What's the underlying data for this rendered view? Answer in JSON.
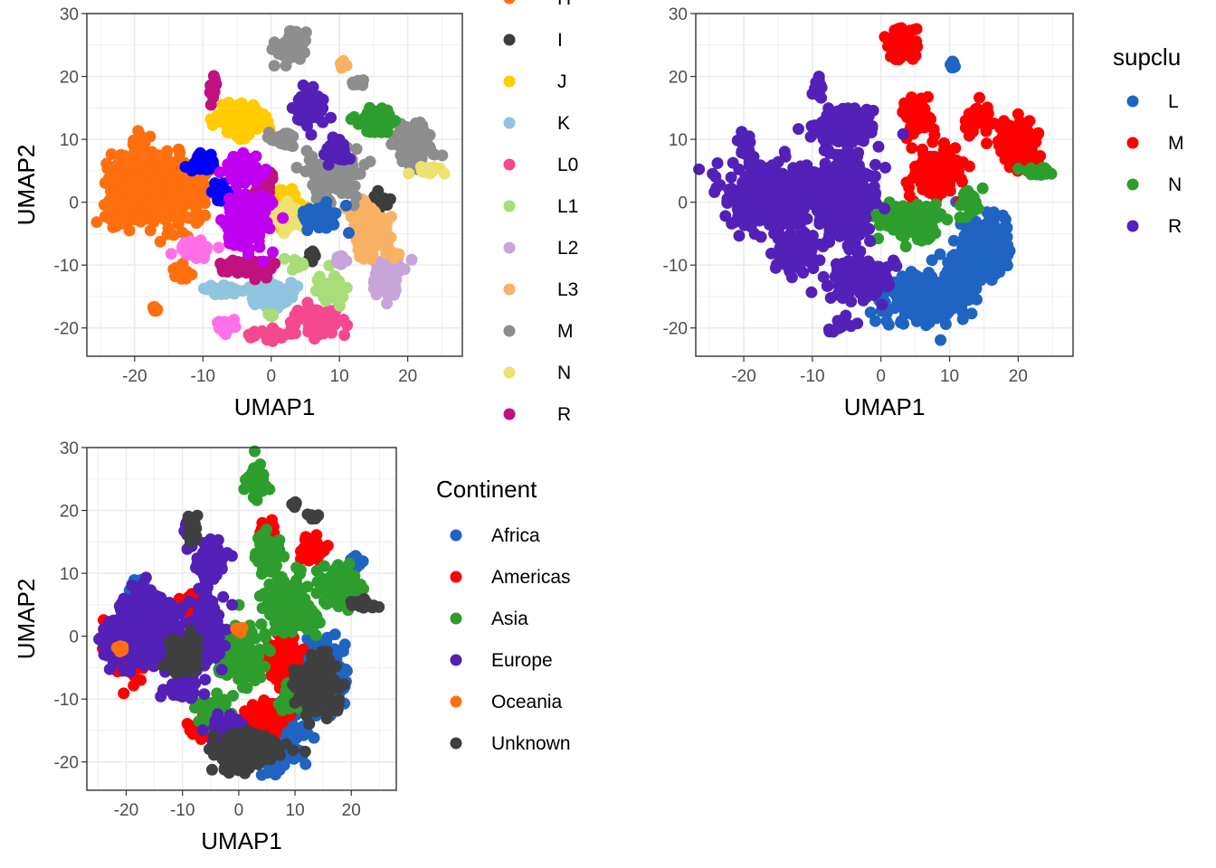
{
  "chart_data": [
    {
      "type": "scatter",
      "xlabel": "UMAP1",
      "ylabel": "UMAP2",
      "xlim": [
        -27,
        28
      ],
      "ylim": [
        -24.5,
        30
      ],
      "xticks": [
        -20,
        -10,
        0,
        10,
        20
      ],
      "yticks": [
        -20,
        -10,
        0,
        10,
        20,
        30
      ],
      "x_tick_labels": [
        "-20",
        "-10",
        "0",
        "10",
        "20"
      ],
      "y_tick_labels": [
        "-20",
        "-10",
        "0",
        "10",
        "20",
        "30"
      ],
      "grid": true,
      "legend_title": "",
      "legend_position": "right",
      "series": [
        {
          "name": "H",
          "color": "#ff6f0e",
          "clusters": [
            {
              "x": -16,
              "y": 2,
              "sx": 4.5,
              "sy": 4
            },
            {
              "x": -21,
              "y": 2,
              "sx": 2,
              "sy": 4
            },
            {
              "x": -19.5,
              "y": 9,
              "sx": 0.8,
              "sy": 1.2
            },
            {
              "x": -13,
              "y": -11,
              "sx": 1,
              "sy": 1
            },
            {
              "x": -17,
              "y": -17,
              "sx": 0.3,
              "sy": 0.3
            }
          ]
        },
        {
          "name": "I",
          "color": "#3d3d3d",
          "clusters": [
            {
              "x": 16,
              "y": 0,
              "sx": 1,
              "sy": 1.2
            },
            {
              "x": 6,
              "y": -8,
              "sx": 0.6,
              "sy": 0.8
            }
          ]
        },
        {
          "name": "J",
          "color": "#ffcc00",
          "clusters": [
            {
              "x": -4.5,
              "y": 13,
              "sx": 2.5,
              "sy": 1.8
            },
            {
              "x": 2,
              "y": -1,
              "sx": 1.8,
              "sy": 2
            }
          ]
        },
        {
          "name": "K",
          "color": "#91c4de",
          "clusters": [
            {
              "x": 0,
              "y": -14.5,
              "sx": 2.5,
              "sy": 1.5
            },
            {
              "x": -7,
              "y": -14,
              "sx": 1.5,
              "sy": 0.8
            }
          ]
        },
        {
          "name": "L0",
          "color": "#f4498e",
          "clusters": [
            {
              "x": 7,
              "y": -19,
              "sx": 2.5,
              "sy": 1.5
            },
            {
              "x": 0,
              "y": -21,
              "sx": 2,
              "sy": 0.6
            }
          ]
        },
        {
          "name": "L1",
          "color": "#a8dd78",
          "clusters": [
            {
              "x": 9,
              "y": -14,
              "sx": 1.5,
              "sy": 1.5
            },
            {
              "x": 4,
              "y": -10,
              "sx": 1,
              "sy": 0.7
            },
            {
              "x": 0,
              "y": -18,
              "sx": 0.3,
              "sy": 0.3
            }
          ]
        },
        {
          "name": "L2",
          "color": "#c7a4d9",
          "clusters": [
            {
              "x": 17,
              "y": -12,
              "sx": 1.5,
              "sy": 2.5
            },
            {
              "x": 10,
              "y": -9,
              "sx": 0.7,
              "sy": 0.7
            }
          ]
        },
        {
          "name": "L3",
          "color": "#f9b163",
          "clusters": [
            {
              "x": 15,
              "y": -5,
              "sx": 2,
              "sy": 2.5
            },
            {
              "x": 13,
              "y": -1,
              "sx": 1.2,
              "sy": 1.2
            },
            {
              "x": 10.5,
              "y": 22,
              "sx": 0.3,
              "sy": 0.3
            }
          ]
        },
        {
          "name": "M",
          "color": "#8e8e8e",
          "clusters": [
            {
              "x": 9,
              "y": 4,
              "sx": 2.5,
              "sy": 3
            },
            {
              "x": 21,
              "y": 9,
              "sx": 2,
              "sy": 2.5
            },
            {
              "x": 3,
              "y": 25,
              "sx": 1.5,
              "sy": 2
            },
            {
              "x": 1.5,
              "y": 10,
              "sx": 1.2,
              "sy": 1.2
            },
            {
              "x": 13,
              "y": 19,
              "sx": 0.8,
              "sy": 0.4
            }
          ]
        },
        {
          "name": "N",
          "color": "#ede16f",
          "clusters": [
            {
              "x": 23,
              "y": 5,
              "sx": 1.5,
              "sy": 0.6
            },
            {
              "x": 2,
              "y": -2,
              "sx": 1.5,
              "sy": 1.5
            }
          ]
        },
        {
          "name": "R",
          "color": "#c1117f",
          "clusters": [
            {
              "x": -3,
              "y": -10.5,
              "sx": 3,
              "sy": 1
            },
            {
              "x": -1,
              "y": 3,
              "sx": 1,
              "sy": 1.5
            },
            {
              "x": -8.5,
              "y": 18,
              "sx": 0.4,
              "sy": 1.5
            }
          ]
        },
        {
          "name": "",
          "color": "#5320b8",
          "clusters": [
            {
              "x": 5.5,
              "y": 15,
              "sx": 1.5,
              "sy": 2
            },
            {
              "x": 9.5,
              "y": 8,
              "sx": 1.2,
              "sy": 1.2
            }
          ]
        },
        {
          "name": "",
          "color": "#2d9e2d",
          "clusters": [
            {
              "x": 15,
              "y": 13,
              "sx": 2,
              "sy": 1.5
            }
          ]
        },
        {
          "name": "",
          "color": "#1f64c2",
          "clusters": [
            {
              "x": 7.5,
              "y": -2.5,
              "sx": 2,
              "sy": 1.5
            }
          ]
        },
        {
          "name": "",
          "color": "#0000ff",
          "clusters": [
            {
              "x": -10,
              "y": 6,
              "sx": 1.5,
              "sy": 1.2
            },
            {
              "x": -7,
              "y": 1.5,
              "sx": 1,
              "sy": 1
            }
          ]
        },
        {
          "name": "",
          "color": "#c000f0",
          "clusters": [
            {
              "x": -3.5,
              "y": -3,
              "sx": 2.5,
              "sy": 3
            },
            {
              "x": -4,
              "y": 5.5,
              "sx": 2,
              "sy": 1.5
            }
          ]
        },
        {
          "name": "",
          "color": "#ff70e8",
          "clusters": [
            {
              "x": -11,
              "y": -7.5,
              "sx": 2,
              "sy": 1
            },
            {
              "x": -6.5,
              "y": -19.5,
              "sx": 1,
              "sy": 0.8
            }
          ]
        }
      ]
    },
    {
      "type": "scatter",
      "xlabel": "UMAP1",
      "ylabel": "UMAP2",
      "xlim": [
        -27,
        28
      ],
      "ylim": [
        -24.5,
        30
      ],
      "xticks": [
        -20,
        -10,
        0,
        10,
        20
      ],
      "yticks": [
        -20,
        -10,
        0,
        10,
        20,
        30
      ],
      "x_tick_labels": [
        "-20",
        "-10",
        "0",
        "10",
        "20"
      ],
      "y_tick_labels": [
        "-20",
        "-10",
        "0",
        "10",
        "20",
        "30"
      ],
      "grid": true,
      "legend_title": "supclu",
      "legend_position": "right",
      "series": [
        {
          "name": "L",
          "color": "#1f64c2",
          "clusters": [
            {
              "x": 15,
              "y": -7,
              "sx": 2.5,
              "sy": 3.5
            },
            {
              "x": 6,
              "y": -15,
              "sx": 4,
              "sy": 3
            },
            {
              "x": 12,
              "y": -12,
              "sx": 2,
              "sy": 2
            },
            {
              "x": 10.5,
              "y": 22,
              "sx": 0.3,
              "sy": 0.3
            }
          ]
        },
        {
          "name": "M",
          "color": "#ff0000",
          "clusters": [
            {
              "x": 8,
              "y": 5,
              "sx": 2.5,
              "sy": 3
            },
            {
              "x": 20,
              "y": 9,
              "sx": 2,
              "sy": 2.5
            },
            {
              "x": 3,
              "y": 25,
              "sx": 1.5,
              "sy": 2
            },
            {
              "x": 5,
              "y": 14,
              "sx": 1.5,
              "sy": 2
            },
            {
              "x": 14,
              "y": 13,
              "sx": 1.5,
              "sy": 1.5
            }
          ]
        },
        {
          "name": "N",
          "color": "#2d9e2d",
          "clusters": [
            {
              "x": 4,
              "y": -3,
              "sx": 3,
              "sy": 2
            },
            {
              "x": 23,
              "y": 5,
              "sx": 1.5,
              "sy": 0.6
            },
            {
              "x": 13,
              "y": 0,
              "sx": 1.2,
              "sy": 1.2
            }
          ]
        },
        {
          "name": "R",
          "color": "#5320b8",
          "clusters": [
            {
              "x": -16,
              "y": 1,
              "sx": 4.5,
              "sy": 4
            },
            {
              "x": -5,
              "y": 1,
              "sx": 3,
              "sy": 5
            },
            {
              "x": -3,
              "y": -12,
              "sx": 3,
              "sy": 2.5
            },
            {
              "x": -5,
              "y": 12,
              "sx": 3,
              "sy": 2
            },
            {
              "x": -12,
              "y": -8,
              "sx": 2,
              "sy": 2
            },
            {
              "x": -6,
              "y": -19.5,
              "sx": 1,
              "sy": 0.8
            },
            {
              "x": -9,
              "y": 18,
              "sx": 0.5,
              "sy": 1.5
            },
            {
              "x": -20,
              "y": 9,
              "sx": 0.8,
              "sy": 1.2
            }
          ]
        }
      ]
    },
    {
      "type": "scatter",
      "xlabel": "UMAP1",
      "ylabel": "UMAP2",
      "xlim": [
        -27,
        28
      ],
      "ylim": [
        -24.5,
        30
      ],
      "xticks": [
        -20,
        -10,
        0,
        10,
        20
      ],
      "yticks": [
        -20,
        -10,
        0,
        10,
        20,
        30
      ],
      "x_tick_labels": [
        "-20",
        "-10",
        "0",
        "10",
        "20"
      ],
      "y_tick_labels": [
        "-20",
        "-10",
        "0",
        "10",
        "20",
        "30"
      ],
      "grid": true,
      "legend_title": "Continent",
      "legend_position": "right",
      "series": [
        {
          "name": "Africa",
          "color": "#1f64c2",
          "clusters": [
            {
              "x": 15,
              "y": -7,
              "sx": 2.5,
              "sy": 3.5
            },
            {
              "x": 7,
              "y": -16,
              "sx": 3,
              "sy": 3
            },
            {
              "x": -18,
              "y": 8,
              "sx": 1,
              "sy": 1
            },
            {
              "x": 21,
              "y": 12,
              "sx": 0.8,
              "sy": 0.8
            }
          ]
        },
        {
          "name": "Americas",
          "color": "#ff0000",
          "clusters": [
            {
              "x": 8,
              "y": -4,
              "sx": 2,
              "sy": 3
            },
            {
              "x": -19,
              "y": -2,
              "sx": 3,
              "sy": 3
            },
            {
              "x": 13,
              "y": 14,
              "sx": 1.5,
              "sy": 1.2
            },
            {
              "x": 5,
              "y": 16,
              "sx": 1.2,
              "sy": 1.5
            },
            {
              "x": -7,
              "y": -15,
              "sx": 1.5,
              "sy": 1
            },
            {
              "x": 5,
              "y": -13,
              "sx": 2,
              "sy": 2
            },
            {
              "x": -8,
              "y": 5,
              "sx": 1.5,
              "sy": 1.5
            }
          ]
        },
        {
          "name": "Asia",
          "color": "#2d9e2d",
          "clusters": [
            {
              "x": 8,
              "y": 5,
              "sx": 2.5,
              "sy": 3
            },
            {
              "x": 3,
              "y": 25,
              "sx": 1.2,
              "sy": 1.8
            },
            {
              "x": 0,
              "y": -3,
              "sx": 3,
              "sy": 3
            },
            {
              "x": 18,
              "y": 8,
              "sx": 2.5,
              "sy": 2
            },
            {
              "x": -4,
              "y": -12,
              "sx": 2,
              "sy": 2
            },
            {
              "x": 5,
              "y": 13,
              "sx": 1.5,
              "sy": 2
            },
            {
              "x": 12,
              "y": 3,
              "sx": 1.5,
              "sy": 1.5
            },
            {
              "x": 10,
              "y": -10,
              "sx": 2,
              "sy": 1.5
            }
          ]
        },
        {
          "name": "Europe",
          "color": "#5320b8",
          "clusters": [
            {
              "x": -16,
              "y": 1,
              "sx": 4,
              "sy": 4
            },
            {
              "x": -22,
              "y": -1,
              "sx": 1.5,
              "sy": 2.5
            },
            {
              "x": -5,
              "y": 12,
              "sx": 2,
              "sy": 2
            },
            {
              "x": -6,
              "y": 1,
              "sx": 2,
              "sy": 4
            },
            {
              "x": -2,
              "y": -15,
              "sx": 2,
              "sy": 1.5
            },
            {
              "x": -10,
              "y": -8,
              "sx": 2,
              "sy": 1.5
            },
            {
              "x": -9,
              "y": 17,
              "sx": 0.5,
              "sy": 1.5
            }
          ]
        },
        {
          "name": "Oceania",
          "color": "#ff6f0e",
          "clusters": [
            {
              "x": 0,
              "y": 1,
              "sx": 0.4,
              "sy": 0.4
            },
            {
              "x": -21,
              "y": -2,
              "sx": 0.4,
              "sy": 0.4
            }
          ]
        },
        {
          "name": "Unknown",
          "color": "#404040",
          "clusters": [
            {
              "x": 22,
              "y": 5,
              "sx": 1.5,
              "sy": 0.6
            },
            {
              "x": 2,
              "y": -18,
              "sx": 4,
              "sy": 2
            },
            {
              "x": 14,
              "y": -8,
              "sx": 2.5,
              "sy": 3
            },
            {
              "x": -8,
              "y": 17,
              "sx": 0.6,
              "sy": 2
            },
            {
              "x": 13,
              "y": 19,
              "sx": 0.8,
              "sy": 0.4
            },
            {
              "x": 0,
              "y": -21,
              "sx": 1.5,
              "sy": 0.6
            },
            {
              "x": 10,
              "y": 21,
              "sx": 0.4,
              "sy": 0.4
            },
            {
              "x": -10,
              "y": -3,
              "sx": 2,
              "sy": 2
            }
          ]
        }
      ]
    }
  ]
}
